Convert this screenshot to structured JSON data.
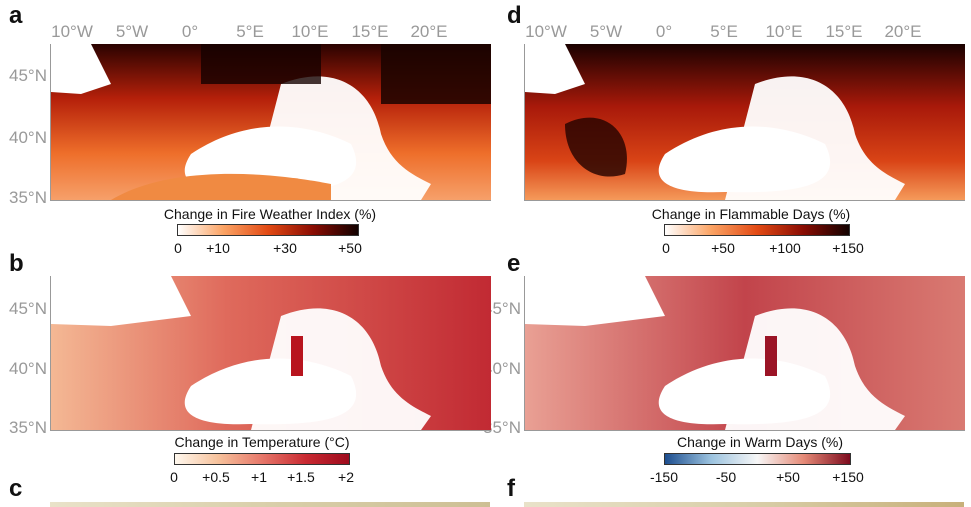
{
  "longitude_labels": [
    "10°W",
    "5°W",
    "0°",
    "5°E",
    "10°E",
    "15°E",
    "20°E"
  ],
  "latitude_labels": [
    "45°N",
    "40°N",
    "35°N"
  ],
  "panels": {
    "a": {
      "letter": "a",
      "colorbar_title": "Change in Fire Weather Index (%)",
      "ticks": [
        "0",
        "+10",
        "+30",
        "+50"
      ],
      "colors": [
        "#ffffff",
        "#fba465",
        "#e24a14",
        "#8a0c03",
        "#120100"
      ]
    },
    "b": {
      "letter": "b",
      "colorbar_title": "Change in Temperature (°C)",
      "ticks": [
        "0",
        "+0.5",
        "+1",
        "+1.5",
        "+2"
      ],
      "colors": [
        "#fff8ee",
        "#f6c19b",
        "#e6776a",
        "#c92a32",
        "#9e0b1d"
      ]
    },
    "c": {
      "letter": "c"
    },
    "d": {
      "letter": "d",
      "colorbar_title": "Change in Flammable Days (%)",
      "ticks": [
        "0",
        "+50",
        "+100",
        "+150"
      ],
      "colors": [
        "#ffffff",
        "#fba465",
        "#e24a14",
        "#8a0c03",
        "#120100"
      ]
    },
    "e": {
      "letter": "e",
      "colorbar_title": "Change in Warm Days (%)",
      "ticks": [
        "-150",
        "-50",
        "+50",
        "+150"
      ],
      "colors": [
        "#1d4e8f",
        "#9cc3df",
        "#f7f7f7",
        "#e58a77",
        "#7d0b1e"
      ]
    },
    "f": {
      "letter": "f"
    }
  }
}
